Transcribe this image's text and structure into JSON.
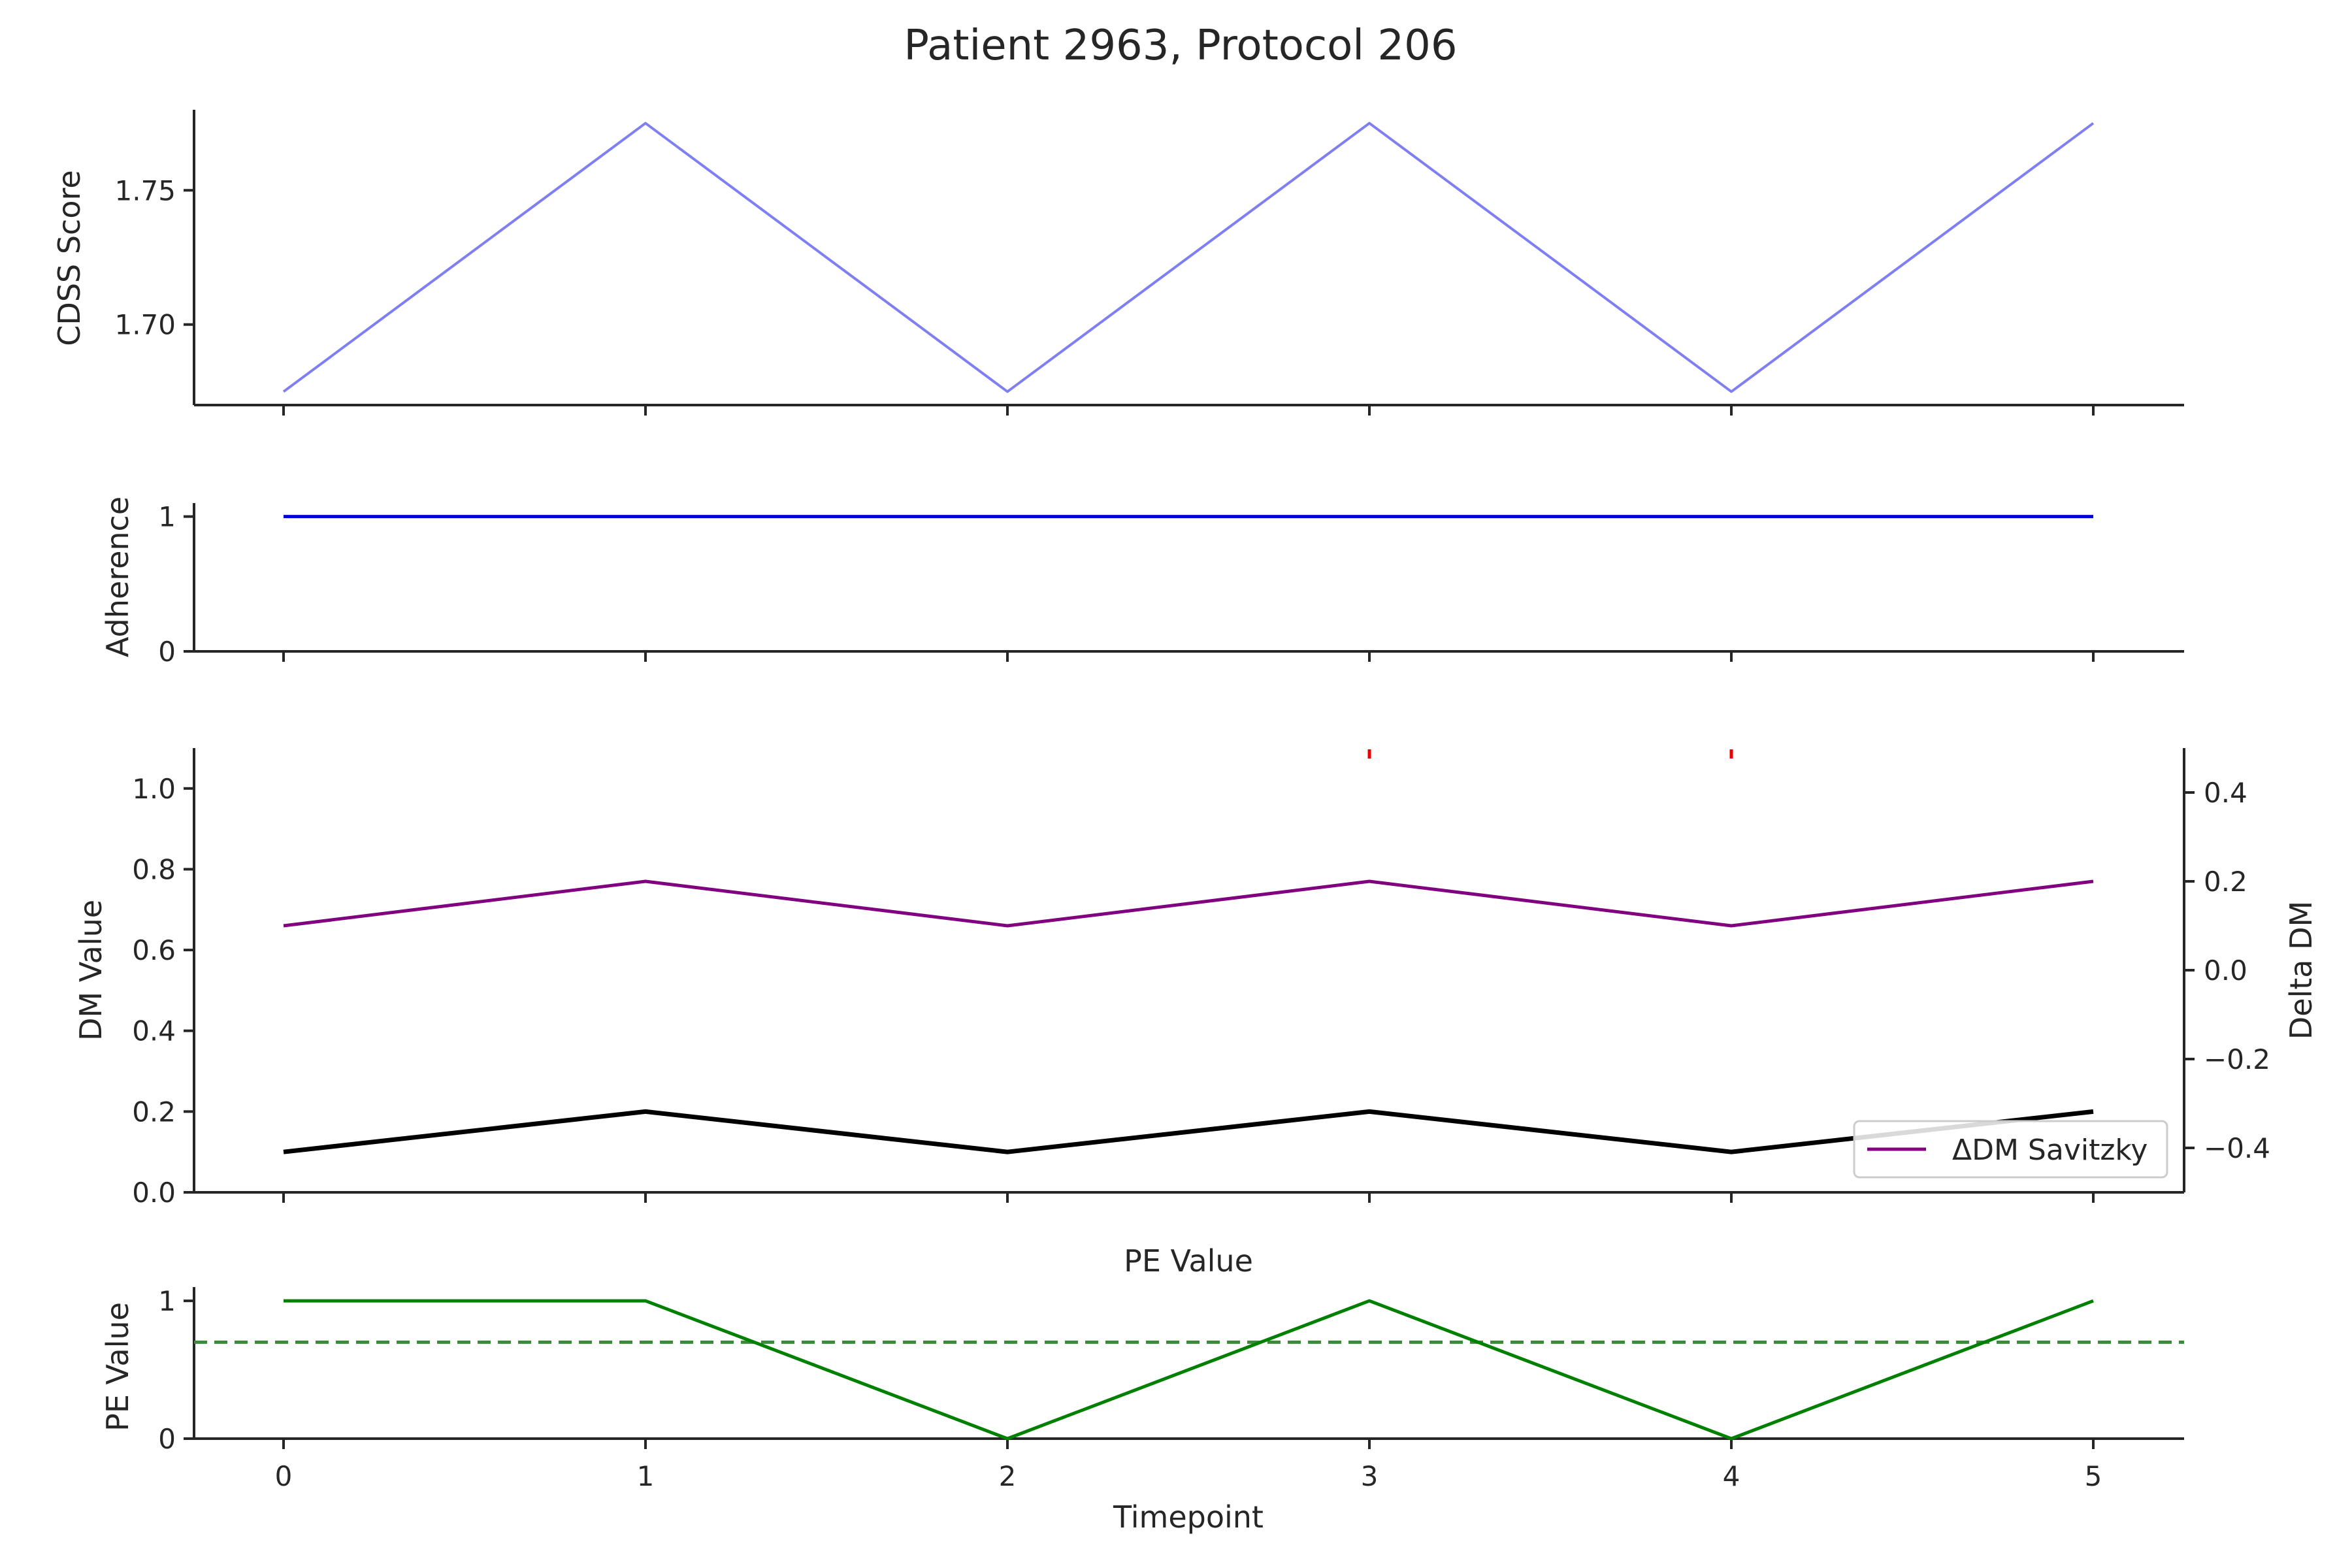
{
  "title": "Patient 2963, Protocol 206",
  "chart_data": [
    {
      "panel": "cdss",
      "type": "line",
      "ylabel": "CDSS Score",
      "ylim": [
        1.67,
        1.78
      ],
      "yticks": [
        1.7,
        1.75
      ],
      "ytick_labels": [
        "1.70",
        "1.75"
      ],
      "x": [
        0,
        1,
        2,
        3,
        4,
        5
      ],
      "series": [
        {
          "values": [
            1.675,
            1.775,
            1.675,
            1.775,
            1.675,
            1.775
          ],
          "color": "#7f7ff5"
        }
      ]
    },
    {
      "panel": "adherence",
      "type": "line",
      "ylabel": "Adherence",
      "ylim": [
        0,
        1.1
      ],
      "yticks": [
        0,
        1
      ],
      "ytick_labels": [
        "0",
        "1"
      ],
      "x": [
        0,
        1,
        2,
        3,
        4,
        5
      ],
      "series": [
        {
          "values": [
            1,
            1,
            1,
            1,
            1,
            1
          ],
          "color": "#0000dd"
        }
      ]
    },
    {
      "panel": "dm",
      "type": "line",
      "ylabel": "DM Value",
      "ylim": [
        0,
        1.1
      ],
      "yticks": [
        0,
        0.2,
        0.4,
        0.6,
        0.8,
        1.0
      ],
      "ytick_labels": [
        "0.0",
        "0.2",
        "0.4",
        "0.6",
        "0.8",
        "1.0"
      ],
      "ylabel_right": "Delta DM",
      "ylim_right": [
        -0.5,
        0.5
      ],
      "yticks_right": [
        -0.4,
        -0.2,
        0.0,
        0.2,
        0.4
      ],
      "ytick_labels_right": [
        "−0.4",
        "−0.2",
        "0.0",
        "0.2",
        "0.4"
      ],
      "x": [
        0,
        1,
        2,
        3,
        4,
        5
      ],
      "series": [
        {
          "values": [
            0.1,
            0.2,
            0.1,
            0.2,
            0.1,
            0.2
          ],
          "color": "#000000",
          "axis": "left"
        },
        {
          "name": "ΔDM Savitzky",
          "values": [
            0.1,
            0.2,
            0.1,
            0.2,
            0.1,
            0.2
          ],
          "color": "#800080",
          "axis": "right"
        }
      ],
      "markers": {
        "x": [
          3,
          4
        ],
        "color": "#ee0000"
      },
      "legend": "lower-right"
    },
    {
      "panel": "pe",
      "type": "line",
      "title": "PE Value",
      "ylabel": "PE Value",
      "xlabel": "Timepoint",
      "ylim": [
        0,
        1.1
      ],
      "yticks": [
        0,
        1
      ],
      "ytick_labels": [
        "0",
        "1"
      ],
      "xticks": [
        0,
        1,
        2,
        3,
        4,
        5
      ],
      "xtick_labels": [
        "0",
        "1",
        "2",
        "3",
        "4",
        "5"
      ],
      "x": [
        0,
        1,
        2,
        3,
        4,
        5
      ],
      "series": [
        {
          "values": [
            1,
            1,
            0,
            1,
            0,
            1
          ],
          "color": "#008000"
        }
      ],
      "threshold": {
        "value": 0.7,
        "color": "#3a8a3a",
        "style": "dashed"
      }
    }
  ]
}
